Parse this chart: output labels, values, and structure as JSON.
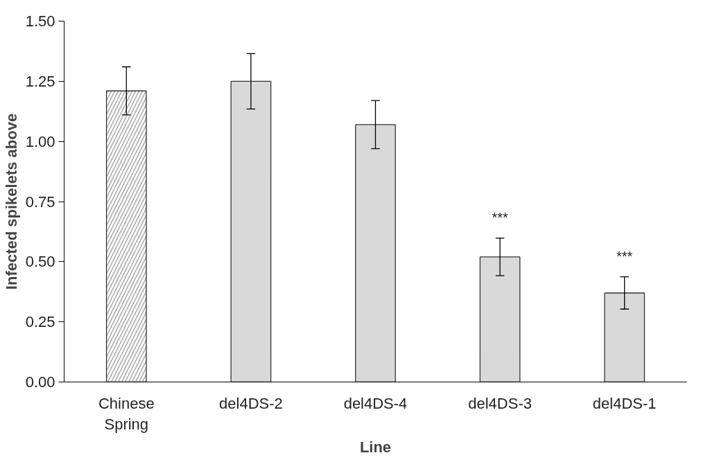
{
  "chart_data": {
    "type": "bar",
    "xlabel": "Line",
    "ylabel": "Infected spikelets above",
    "categories": [
      "Chinese\nSpring",
      "del4DS-2",
      "del4DS-4",
      "del4DS-3",
      "del4DS-1"
    ],
    "values": [
      1.21,
      1.25,
      1.07,
      0.52,
      0.37
    ],
    "errors": [
      0.1,
      0.115,
      0.1,
      0.078,
      0.067
    ],
    "colors": [
      "#a6a6a6",
      "#d9d9d9",
      "#d9d9d9",
      "#d9d9d9",
      "#d9d9d9"
    ],
    "ylim": [
      0,
      1.5
    ],
    "yticks": [
      {
        "value": 0,
        "label": "0.00"
      },
      {
        "value": 0.25,
        "label": "0.25"
      },
      {
        "value": 0.5,
        "label": "0.50"
      },
      {
        "value": 0.75,
        "label": "0.75"
      },
      {
        "value": 1,
        "label": "1.00"
      },
      {
        "value": 1.25,
        "label": "1.25"
      },
      {
        "value": 1.5,
        "label": "1.50"
      }
    ],
    "annotations": [
      {
        "text": "***",
        "x": "del4DS-3",
        "y": 0.52
      },
      {
        "text": "***",
        "x": "del4DS-1",
        "y": 0.37
      }
    ],
    "grid": false
  }
}
